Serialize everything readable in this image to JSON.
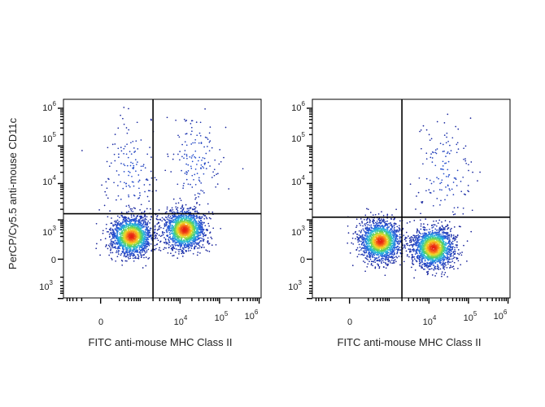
{
  "chart_data": [
    {
      "type": "scatter",
      "subtype": "flow-cytometry-density-dot-plot",
      "xlabel": "FITC anti-mouse  MHC Class II",
      "ylabel": "PerCP/Cy5.5 anti-mouse CD11c",
      "x_scale": "biexponential",
      "y_scale": "biexponential",
      "x_ticks": [
        {
          "base": "0",
          "exp": "",
          "value": 0
        },
        {
          "base": "10",
          "exp": "4",
          "value": 10000
        },
        {
          "base": "10",
          "exp": "5",
          "value": 100000
        },
        {
          "base": "10",
          "exp": "6",
          "value": 1000000
        }
      ],
      "y_ticks": [
        {
          "base": "10",
          "exp": "3",
          "value": -1000
        },
        {
          "base": "0",
          "exp": "",
          "value": 0
        },
        {
          "base": "10",
          "exp": "3",
          "value": 1000
        },
        {
          "base": "10",
          "exp": "4",
          "value": 10000
        },
        {
          "base": "10",
          "exp": "5",
          "value": 100000
        },
        {
          "base": "10",
          "exp": "6",
          "value": 1000000
        }
      ],
      "quadrant_gate": {
        "x": 2000,
        "y": 1500
      },
      "populations": [
        {
          "x_center": 500,
          "y_center": 300,
          "share": 0.47
        },
        {
          "x_center": 13000,
          "y_center": 500,
          "share": 0.45
        },
        {
          "x_center": 500,
          "y_center": 20000,
          "share": 0.04
        },
        {
          "x_center": 25000,
          "y_center": 40000,
          "share": 0.04
        }
      ],
      "grid": false,
      "legend": "none"
    },
    {
      "type": "scatter",
      "subtype": "flow-cytometry-density-dot-plot",
      "xlabel": "FITC anti-mouse  MHC Class II",
      "ylabel": "",
      "x_scale": "biexponential",
      "y_scale": "biexponential",
      "x_ticks": [
        {
          "base": "0",
          "exp": "",
          "value": 0
        },
        {
          "base": "10",
          "exp": "4",
          "value": 10000
        },
        {
          "base": "10",
          "exp": "5",
          "value": 100000
        },
        {
          "base": "10",
          "exp": "6",
          "value": 1000000
        }
      ],
      "y_ticks": [
        {
          "base": "10",
          "exp": "3",
          "value": -1000
        },
        {
          "base": "0",
          "exp": "",
          "value": 0
        },
        {
          "base": "10",
          "exp": "3",
          "value": 1000
        },
        {
          "base": "10",
          "exp": "4",
          "value": 10000
        },
        {
          "base": "10",
          "exp": "5",
          "value": 100000
        },
        {
          "base": "10",
          "exp": "6",
          "value": 1000000
        }
      ],
      "quadrant_gate": {
        "x": 2000,
        "y": 1200
      },
      "populations": [
        {
          "x_center": 500,
          "y_center": 200,
          "share": 0.48
        },
        {
          "x_center": 13000,
          "y_center": 100,
          "share": 0.48
        },
        {
          "x_center": 25000,
          "y_center": 20000,
          "share": 0.04
        }
      ],
      "grid": false,
      "legend": "none"
    }
  ]
}
